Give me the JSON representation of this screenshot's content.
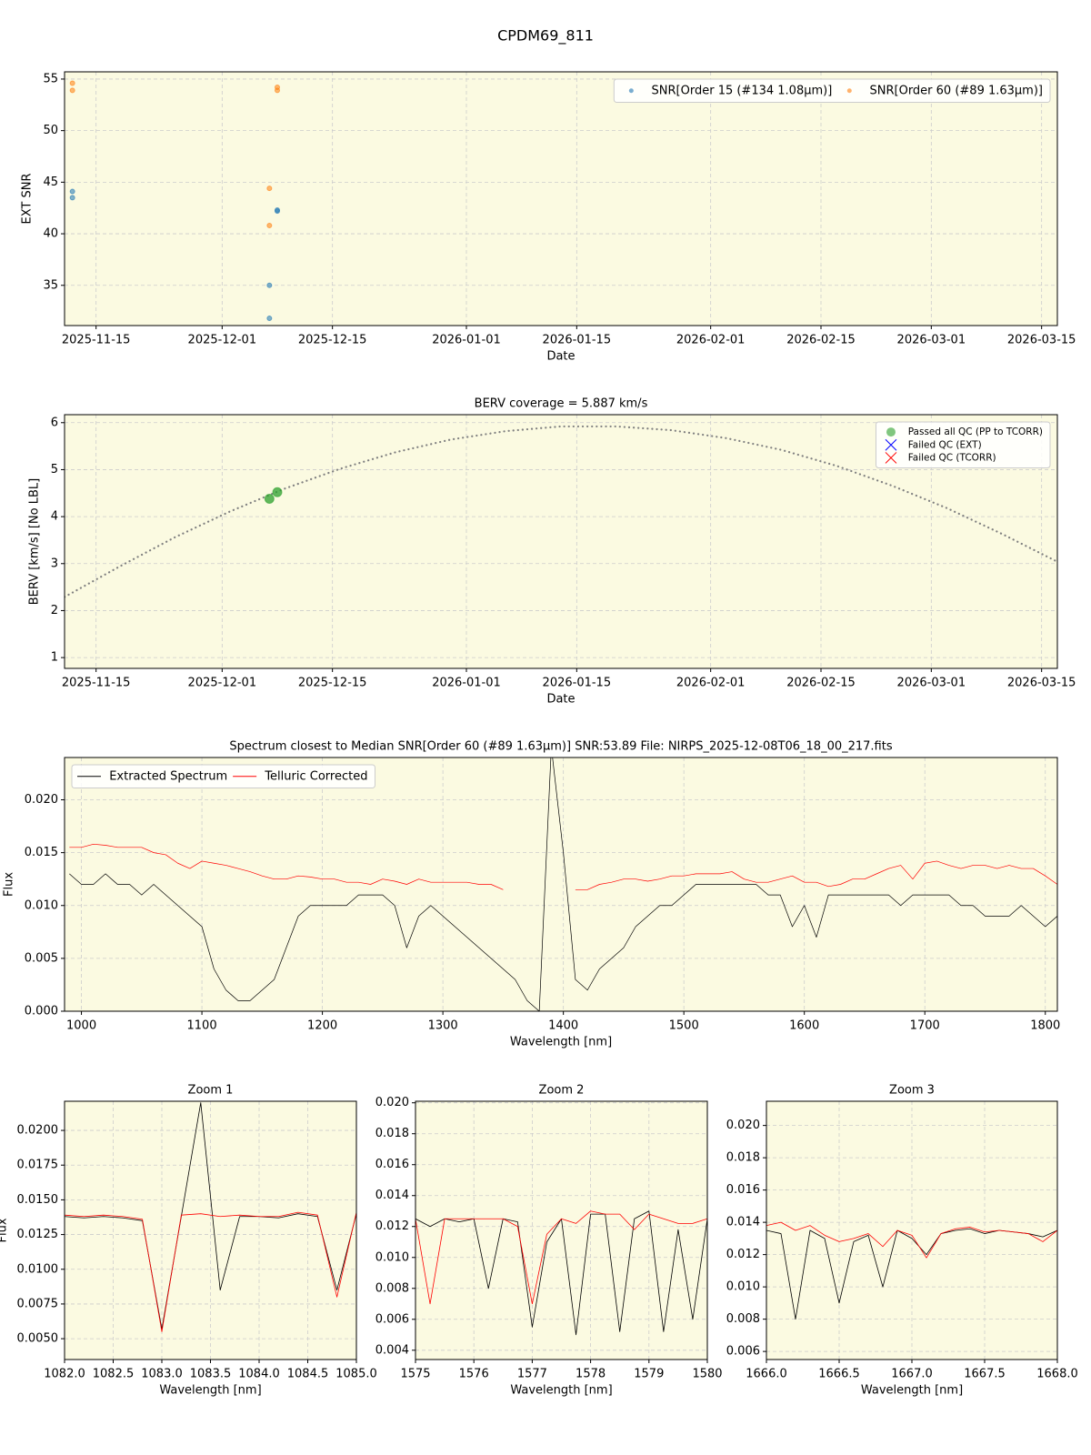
{
  "title": "CPDM69_811",
  "chart_data": [
    {
      "type": "scatter",
      "xlabel": "Date",
      "ylabel": "EXT SNR",
      "xlim": [
        "2025-11-11",
        "2026-03-17"
      ],
      "ylim": [
        31.1,
        55.7
      ],
      "xticks": [
        "2025-11-15",
        "2025-12-01",
        "2025-12-15",
        "2026-01-01",
        "2026-01-15",
        "2026-02-01",
        "2026-02-15",
        "2026-03-01",
        "2026-03-15"
      ],
      "yticks": [
        35,
        40,
        45,
        50,
        55
      ],
      "grid": true,
      "legend": "upper right",
      "legend_columns": 2,
      "series": [
        {
          "name": "SNR[Order 15 (#134 1.08μm)]",
          "color": "#1f77b4",
          "mark": "circle",
          "x": [
            "2025-11-12",
            "2025-11-12",
            "2025-12-07",
            "2025-12-07",
            "2025-12-08",
            "2025-12-08"
          ],
          "values": [
            44.1,
            43.5,
            35.0,
            31.8,
            42.3,
            42.2
          ]
        },
        {
          "name": "SNR[Order 60 (#89 1.63μm)]",
          "color": "#ff7f0e",
          "mark": "circle",
          "x": [
            "2025-11-12",
            "2025-11-12",
            "2025-12-07",
            "2025-12-07",
            "2025-12-08",
            "2025-12-08"
          ],
          "values": [
            54.6,
            53.9,
            44.4,
            40.8,
            54.2,
            53.9
          ]
        }
      ]
    },
    {
      "type": "scatter",
      "title": "BERV coverage = 5.887 km/s",
      "xlabel": "Date",
      "ylabel": "BERV [km/s]  [No LBL]",
      "xlim": [
        "2025-11-11",
        "2026-03-17"
      ],
      "ylim": [
        0.77,
        6.17
      ],
      "xticks": [
        "2025-11-15",
        "2025-12-01",
        "2025-12-15",
        "2026-01-01",
        "2026-01-15",
        "2026-02-01",
        "2026-02-15",
        "2026-03-01",
        "2026-03-15"
      ],
      "yticks": [
        1,
        2,
        3,
        4,
        5,
        6
      ],
      "grid": true,
      "legend": "upper right",
      "legend_columns": 1,
      "series": [
        {
          "color": "#808080",
          "mark": "dotted-line",
          "x": [
            "2025-11-11",
            "2025-11-18",
            "2025-11-25",
            "2025-12-02",
            "2025-12-09",
            "2025-12-16",
            "2025-12-23",
            "2025-12-30",
            "2026-01-06",
            "2026-01-13",
            "2026-01-20",
            "2026-01-27",
            "2026-02-03",
            "2026-02-10",
            "2026-02-17",
            "2026-02-24",
            "2026-03-03",
            "2026-03-10",
            "2026-03-17"
          ],
          "values": [
            2.29,
            2.94,
            3.56,
            4.11,
            4.6,
            5.02,
            5.37,
            5.64,
            5.82,
            5.92,
            5.92,
            5.84,
            5.67,
            5.42,
            5.08,
            4.66,
            4.18,
            3.63,
            3.04
          ]
        },
        {
          "name": "Passed all QC (PP to TCORR)",
          "color": "#2ca02c",
          "mark": "circle",
          "x": [
            "2025-12-07",
            "2025-12-08"
          ],
          "values": [
            4.38,
            4.52
          ]
        },
        {
          "name": "Failed QC (EXT)",
          "color": "#0000ff",
          "mark": "cross",
          "x": [],
          "values": []
        },
        {
          "name": "Failed QC (TCORR)",
          "color": "#ff0000",
          "mark": "cross",
          "x": [],
          "values": []
        }
      ]
    },
    {
      "type": "line",
      "title": "Spectrum closest to Median SNR[Order 60 (#89 1.63μm)]     SNR:53.89     File: NIRPS_2025-12-08T06_18_00_217.fits",
      "xlabel": "Wavelength [nm]",
      "ylabel": "Flux",
      "xlim": [
        986,
        1810
      ],
      "ylim": [
        0,
        0.024
      ],
      "xticks": [
        1000,
        1100,
        1200,
        1300,
        1400,
        1500,
        1600,
        1700,
        1800
      ],
      "yticks": [
        {
          "value": 0,
          "label": "0.000"
        },
        0.005,
        {
          "value": 0.01,
          "label": "0.010"
        },
        0.015,
        {
          "value": 0.02,
          "label": "0.020"
        }
      ],
      "grid": true,
      "legend": "upper left",
      "legend_columns": 2,
      "x": [
        990,
        1000,
        1010,
        1020,
        1030,
        1040,
        1050,
        1060,
        1070,
        1080,
        1090,
        1100,
        1110,
        1120,
        1130,
        1140,
        1150,
        1160,
        1170,
        1180,
        1190,
        1200,
        1210,
        1220,
        1230,
        1240,
        1250,
        1260,
        1270,
        1280,
        1290,
        1300,
        1310,
        1320,
        1330,
        1340,
        1350,
        1360,
        1370,
        1380,
        1390,
        1400,
        1410,
        1420,
        1430,
        1440,
        1450,
        1460,
        1470,
        1480,
        1490,
        1500,
        1510,
        1520,
        1530,
        1540,
        1550,
        1560,
        1570,
        1580,
        1590,
        1600,
        1610,
        1620,
        1630,
        1640,
        1650,
        1660,
        1670,
        1680,
        1690,
        1700,
        1710,
        1720,
        1730,
        1740,
        1750,
        1760,
        1770,
        1780,
        1790,
        1800,
        1810
      ],
      "series": [
        {
          "name": "Extracted Spectrum",
          "color": "#000000",
          "mark": "line",
          "values": [
            0.013,
            0.012,
            0.012,
            0.013,
            0.012,
            0.012,
            0.011,
            0.012,
            0.011,
            0.01,
            0.009,
            0.008,
            0.004,
            0.002,
            0.001,
            0.001,
            0.002,
            0.003,
            0.006,
            0.009,
            0.01,
            0.01,
            0.01,
            0.01,
            0.011,
            0.011,
            0.011,
            0.01,
            0.006,
            0.009,
            0.01,
            0.009,
            0.008,
            0.007,
            0.006,
            0.005,
            0.004,
            0.003,
            0.001,
            0.0,
            0.025,
            0.015,
            0.003,
            0.002,
            0.004,
            0.005,
            0.006,
            0.008,
            0.009,
            0.01,
            0.01,
            0.011,
            0.012,
            0.012,
            0.012,
            0.012,
            0.012,
            0.012,
            0.011,
            0.011,
            0.008,
            0.01,
            0.007,
            0.011,
            0.011,
            0.011,
            0.011,
            0.011,
            0.011,
            0.01,
            0.011,
            0.011,
            0.011,
            0.011,
            0.01,
            0.01,
            0.009,
            0.009,
            0.009,
            0.01,
            0.009,
            0.008,
            0.009
          ]
        },
        {
          "name": "Telluric Corrected",
          "color": "#ff0000",
          "mark": "line",
          "values": [
            0.0155,
            0.0155,
            0.0158,
            0.0157,
            0.0155,
            0.0155,
            0.0155,
            0.015,
            0.0148,
            0.014,
            0.0135,
            0.0142,
            0.014,
            0.0138,
            0.0135,
            0.0132,
            0.0128,
            0.0125,
            0.0125,
            0.0128,
            0.0127,
            0.0125,
            0.0125,
            0.0122,
            0.0122,
            0.012,
            0.0125,
            0.0123,
            0.012,
            0.0125,
            0.0122,
            0.0122,
            0.0122,
            0.0122,
            0.012,
            0.012,
            0.0115,
            null,
            null,
            null,
            null,
            null,
            0.0115,
            0.0115,
            0.012,
            0.0122,
            0.0125,
            0.0125,
            0.0123,
            0.0125,
            0.0128,
            0.0128,
            0.013,
            0.013,
            0.013,
            0.0132,
            0.0125,
            0.0122,
            0.0122,
            0.0125,
            0.0128,
            0.0122,
            0.0122,
            0.0118,
            0.012,
            0.0125,
            0.0125,
            0.013,
            0.0135,
            0.0138,
            0.0125,
            0.014,
            0.0142,
            0.0138,
            0.0135,
            0.0138,
            0.0138,
            0.0135,
            0.0138,
            0.0135,
            0.0135,
            0.0128,
            0.012
          ]
        }
      ]
    },
    {
      "type": "line",
      "title": "Zoom 1",
      "xlabel": "Wavelength [nm]",
      "ylabel": "Flux",
      "xlim": [
        1082,
        1085
      ],
      "ylim": [
        0.0035,
        0.0221
      ],
      "xticks": [
        {
          "value": 1082,
          "label": "1082.0"
        },
        1082.5,
        {
          "value": 1083,
          "label": "1083.0"
        },
        1083.5,
        {
          "value": 1084,
          "label": "1084.0"
        },
        1084.5,
        {
          "value": 1085,
          "label": "1085.0"
        }
      ],
      "yticks": [
        {
          "value": 0.005,
          "label": "0.0050"
        },
        0.0075,
        {
          "value": 0.01,
          "label": "0.0100"
        },
        0.0125,
        {
          "value": 0.015,
          "label": "0.0150"
        },
        0.0175,
        {
          "value": 0.02,
          "label": "0.0200"
        }
      ],
      "grid": true,
      "x": [
        1082,
        1082.2,
        1082.4,
        1082.6,
        1082.8,
        1083,
        1083.2,
        1083.4,
        1083.6,
        1083.8,
        1084,
        1084.2,
        1084.4,
        1084.6,
        1084.8,
        1085
      ],
      "series": [
        {
          "color": "#000000",
          "mark": "line",
          "values": [
            0.0138,
            0.0137,
            0.0138,
            0.0137,
            0.0135,
            0.0057,
            0.0138,
            0.022,
            0.0085,
            0.0138,
            0.0138,
            0.0137,
            0.014,
            0.0138,
            0.0085,
            0.014
          ]
        },
        {
          "color": "#ff0000",
          "mark": "line",
          "values": [
            0.0139,
            0.0138,
            0.0139,
            0.0138,
            0.0136,
            0.0055,
            0.0139,
            0.014,
            0.0138,
            0.0139,
            0.0138,
            0.0138,
            0.0141,
            0.0139,
            0.008,
            0.0141
          ]
        }
      ]
    },
    {
      "type": "line",
      "title": "Zoom 2",
      "xlabel": "Wavelength [nm]",
      "xlim": [
        1575,
        1580
      ],
      "ylim": [
        0.0034,
        0.0201
      ],
      "xticks": [
        1575,
        1576,
        1577,
        1578,
        1579,
        1580
      ],
      "yticks": [
        0.004,
        0.006,
        0.008,
        {
          "value": 0.01,
          "label": "0.010"
        },
        0.012,
        0.014,
        0.016,
        0.018,
        {
          "value": 0.02,
          "label": "0.020"
        }
      ],
      "grid": true,
      "x": [
        1575,
        1575.25,
        1575.5,
        1575.75,
        1576,
        1576.25,
        1576.5,
        1576.75,
        1577,
        1577.25,
        1577.5,
        1577.75,
        1578,
        1578.25,
        1578.5,
        1578.75,
        1579,
        1579.25,
        1579.5,
        1579.75,
        1580
      ],
      "series": [
        {
          "color": "#000000",
          "mark": "line",
          "values": [
            0.0125,
            0.012,
            0.0125,
            0.0123,
            0.0125,
            0.008,
            0.0125,
            0.0123,
            0.0055,
            0.011,
            0.0125,
            0.005,
            0.0128,
            0.0128,
            0.0052,
            0.0125,
            0.013,
            0.0052,
            0.0118,
            0.006,
            0.0125
          ]
        },
        {
          "color": "#ff0000",
          "mark": "line",
          "values": [
            0.0125,
            0.007,
            0.0125,
            0.0125,
            0.0125,
            0.0125,
            0.0125,
            0.012,
            0.007,
            0.0115,
            0.0125,
            0.0122,
            0.013,
            0.0128,
            0.0128,
            0.0118,
            0.0128,
            0.0125,
            0.0122,
            0.0122,
            0.0125
          ]
        }
      ]
    },
    {
      "type": "line",
      "title": "Zoom 3",
      "xlabel": "Wavelength [nm]",
      "xlim": [
        1666,
        1668
      ],
      "ylim": [
        0.0055,
        0.0215
      ],
      "xticks": [
        {
          "value": 1666,
          "label": "1666.0"
        },
        1666.5,
        {
          "value": 1667,
          "label": "1667.0"
        },
        1667.5,
        {
          "value": 1668,
          "label": "1668.0"
        }
      ],
      "yticks": [
        0.006,
        0.008,
        {
          "value": 0.01,
          "label": "0.010"
        },
        0.012,
        0.014,
        0.016,
        0.018,
        {
          "value": 0.02,
          "label": "0.020"
        }
      ],
      "grid": true,
      "x": [
        1666,
        1666.1,
        1666.2,
        1666.3,
        1666.4,
        1666.5,
        1666.6,
        1666.7,
        1666.8,
        1666.9,
        1667,
        1667.1,
        1667.2,
        1667.3,
        1667.4,
        1667.5,
        1667.6,
        1667.7,
        1667.8,
        1667.9,
        1668
      ],
      "series": [
        {
          "color": "#000000",
          "mark": "line",
          "values": [
            0.0135,
            0.0133,
            0.008,
            0.0135,
            0.013,
            0.009,
            0.0128,
            0.0132,
            0.01,
            0.0135,
            0.013,
            0.012,
            0.0133,
            0.0135,
            0.0136,
            0.0133,
            0.0135,
            0.0134,
            0.0133,
            0.0131,
            0.0135
          ]
        },
        {
          "color": "#ff0000",
          "mark": "line",
          "values": [
            0.0138,
            0.014,
            0.0135,
            0.0138,
            0.0132,
            0.0128,
            0.013,
            0.0133,
            0.0125,
            0.0135,
            0.0132,
            0.0118,
            0.0133,
            0.0136,
            0.0137,
            0.0134,
            0.0135,
            0.0134,
            0.0133,
            0.0128,
            0.0135
          ]
        }
      ]
    }
  ]
}
